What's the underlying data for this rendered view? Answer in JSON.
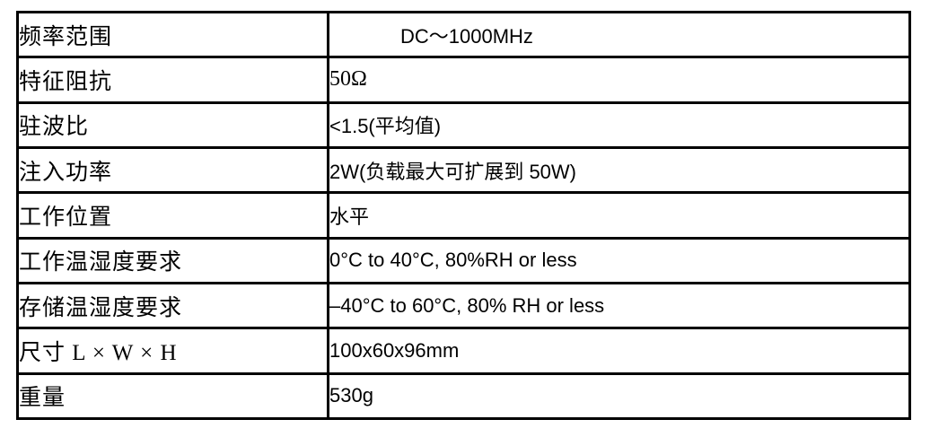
{
  "document": {
    "background": "#ffffff",
    "spec_table": {
      "border_color": "#000000",
      "text_color": "#000000",
      "columns": [
        "parameter",
        "value"
      ],
      "rows": [
        {
          "label": "频率范围",
          "value": "DC～1000MHz",
          "value_style": "sans",
          "value_indent": true
        },
        {
          "label": "特征阻抗",
          "value": "50Ω",
          "value_style": "serif",
          "value_indent": false
        },
        {
          "label": "驻波比",
          "value": "<1.5(平均值)",
          "value_style": "sans",
          "value_indent": false
        },
        {
          "label": "注入功率",
          "value": "2W(负载最大可扩展到 50W)",
          "value_style": "sans",
          "value_indent": false
        },
        {
          "label": "工作位置",
          "value": "水平",
          "value_style": "sans",
          "value_indent": false
        },
        {
          "label": "工作温湿度要求",
          "value": "0°C to 40°C, 80%RH or less",
          "value_style": "sans",
          "value_indent": false
        },
        {
          "label": "存储温湿度要求",
          "value": "–40°C to 60°C, 80% RH or less",
          "value_style": "sans",
          "value_indent": false
        },
        {
          "label": "尺寸 L × W × H",
          "value": "100x60x96mm",
          "value_style": "sans",
          "value_indent": false
        },
        {
          "label": "重量",
          "value": "530g",
          "value_style": "sans",
          "value_indent": false
        }
      ]
    }
  }
}
